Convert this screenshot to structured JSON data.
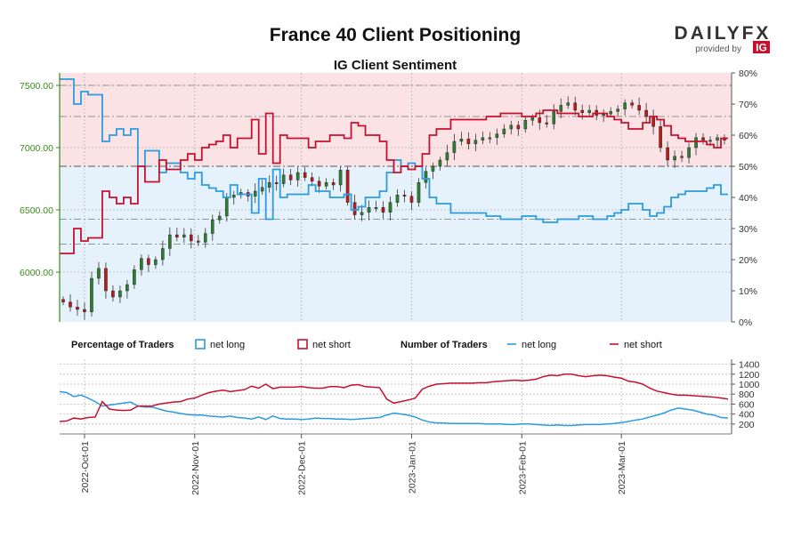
{
  "header": {
    "title": "France 40 Client Positioning",
    "subtitle": "IG Client Sentiment",
    "brand_name": "DAILYFX",
    "brand_tagline": "provided by",
    "brand_badge": "IG"
  },
  "colors": {
    "long": "#2b9be0",
    "short": "#c8102e",
    "long_zone": "#e6f2fb",
    "short_zone": "#fbe3e5",
    "price_axis": "#3a8a1a",
    "candle_up": "#2e7d32",
    "candle_down": "#b71c1c",
    "gray_line": "#777777"
  },
  "legend": {
    "pct_label": "Percentage of Traders",
    "pct_long": "net long",
    "pct_short": "net short",
    "num_label": "Number of Traders",
    "num_long": "net long",
    "num_short": "net short"
  },
  "chart_data": {
    "type": "line",
    "title": "France 40 Client Positioning",
    "subtitle": "IG Client Sentiment",
    "x_tick_labels": [
      "2022-Oct-01",
      "2022-Nov-01",
      "2022-Dec-01",
      "2023-Jan-01",
      "2023-Feb-01",
      "2023-Mar-01"
    ],
    "x_tick_days": [
      0,
      31,
      61,
      92,
      123,
      151
    ],
    "x_range_days": [
      -7,
      182
    ],
    "price_axis": {
      "ticks": [
        "6000.00",
        "6500.00",
        "7000.00",
        "7500.00"
      ],
      "tick_values": [
        6000,
        6500,
        7000,
        7500
      ],
      "range": [
        5600,
        7600
      ]
    },
    "percent_axis": {
      "ticks": [
        "0%",
        "10%",
        "20%",
        "30%",
        "40%",
        "50%",
        "60%",
        "70%",
        "80%"
      ],
      "tick_values": [
        0,
        10,
        20,
        30,
        40,
        50,
        60,
        70,
        80
      ],
      "range": [
        0,
        80
      ]
    },
    "count_axis": {
      "ticks": [
        "200",
        "400",
        "600",
        "800",
        "1000",
        "1200",
        "1400"
      ],
      "tick_values": [
        200,
        400,
        600,
        800,
        1000,
        1200,
        1400
      ],
      "range": [
        0,
        1500
      ]
    },
    "reference_lines": {
      "percent_dash_dot": [
        25,
        33,
        50,
        66,
        76
      ],
      "price_dash_dot": [
        6850
      ],
      "price_dash_dot_labels": []
    },
    "price": {
      "x": [
        -6,
        -4,
        -2,
        0,
        2,
        4,
        6,
        8,
        10,
        12,
        14,
        16,
        18,
        20,
        22,
        24,
        26,
        28,
        30,
        32,
        34,
        36,
        38,
        40,
        42,
        44,
        46,
        48,
        50,
        52,
        54,
        56,
        58,
        60,
        62,
        64,
        66,
        68,
        70,
        72,
        74,
        76,
        78,
        80,
        82,
        84,
        86,
        88,
        90,
        92,
        94,
        96,
        98,
        100,
        102,
        104,
        106,
        108,
        110,
        112,
        114,
        116,
        118,
        120,
        122,
        124,
        126,
        128,
        130,
        132,
        134,
        136,
        138,
        140,
        142,
        144,
        146,
        148,
        150,
        152,
        154,
        156,
        158,
        160,
        162,
        164,
        166,
        168,
        170,
        172,
        174,
        176,
        178,
        180
      ],
      "values": [
        5760,
        5720,
        5700,
        5680,
        5950,
        6030,
        5850,
        5800,
        5850,
        5900,
        6020,
        6110,
        6060,
        6100,
        6190,
        6300,
        6280,
        6300,
        6250,
        6240,
        6310,
        6420,
        6450,
        6600,
        6620,
        6640,
        6610,
        6650,
        6680,
        6720,
        6710,
        6780,
        6740,
        6800,
        6760,
        6730,
        6690,
        6720,
        6700,
        6820,
        6560,
        6460,
        6480,
        6520,
        6520,
        6480,
        6560,
        6620,
        6610,
        6560,
        6720,
        6810,
        6850,
        6900,
        6960,
        7050,
        7070,
        7030,
        7060,
        7080,
        7080,
        7110,
        7150,
        7180,
        7150,
        7220,
        7240,
        7200,
        7190,
        7290,
        7340,
        7360,
        7300,
        7280,
        7300,
        7260,
        7270,
        7290,
        7310,
        7360,
        7340,
        7300,
        7250,
        7170,
        7000,
        6900,
        6930,
        6920,
        7000,
        7080,
        7060,
        7060,
        7080,
        7060
      ]
    },
    "percent_series": {
      "x": [
        -7,
        -5,
        -3,
        -1,
        1,
        3,
        5,
        7,
        9,
        11,
        13,
        15,
        17,
        19,
        21,
        23,
        25,
        27,
        29,
        31,
        33,
        35,
        37,
        39,
        41,
        43,
        45,
        47,
        49,
        51,
        53,
        55,
        57,
        59,
        61,
        63,
        65,
        67,
        69,
        71,
        73,
        75,
        77,
        79,
        81,
        83,
        85,
        87,
        89,
        91,
        93,
        95,
        97,
        99,
        101,
        103,
        105,
        107,
        109,
        111,
        113,
        115,
        117,
        119,
        121,
        123,
        125,
        127,
        129,
        131,
        133,
        135,
        137,
        139,
        141,
        143,
        145,
        147,
        149,
        151,
        153,
        155,
        157,
        159,
        161,
        163,
        165,
        167,
        169,
        171,
        173,
        175,
        177,
        179,
        181
      ],
      "net_long": [
        78,
        78,
        70,
        74,
        73,
        73,
        58,
        60,
        62,
        60,
        62,
        50,
        55,
        55,
        48,
        51,
        51,
        48,
        46,
        48,
        44,
        43,
        42,
        40,
        44,
        41,
        41,
        35,
        46,
        33,
        49,
        40,
        41,
        41,
        41,
        44,
        42,
        42,
        40,
        40,
        41,
        36,
        37,
        40,
        40,
        42,
        48,
        52,
        50,
        51,
        50,
        46,
        40,
        38,
        38,
        35,
        35,
        35,
        35,
        35,
        34,
        34,
        33,
        33,
        33,
        34,
        34,
        33,
        32,
        32,
        33,
        33,
        33,
        34,
        34,
        33,
        33,
        34,
        35,
        36,
        38,
        38,
        36,
        34,
        35,
        37,
        40,
        41,
        42,
        42,
        42,
        43,
        44,
        41,
        41
      ],
      "net_short": [
        22,
        22,
        30,
        26,
        27,
        27,
        42,
        40,
        38,
        40,
        38,
        50,
        45,
        45,
        52,
        49,
        49,
        52,
        54,
        52,
        56,
        57,
        58,
        60,
        56,
        59,
        59,
        65,
        54,
        67,
        51,
        60,
        59,
        59,
        59,
        56,
        58,
        58,
        60,
        60,
        59,
        64,
        63,
        60,
        60,
        58,
        52,
        48,
        50,
        49,
        50,
        54,
        60,
        62,
        62,
        65,
        65,
        65,
        65,
        65,
        66,
        66,
        67,
        67,
        67,
        66,
        66,
        67,
        68,
        68,
        67,
        67,
        67,
        66,
        66,
        67,
        67,
        66,
        65,
        64,
        62,
        62,
        64,
        66,
        65,
        63,
        60,
        59,
        58,
        58,
        58,
        57,
        56,
        59,
        59
      ]
    },
    "count_series": {
      "x": [
        -7,
        -5,
        -3,
        -1,
        1,
        3,
        5,
        7,
        9,
        11,
        13,
        15,
        17,
        19,
        21,
        23,
        25,
        27,
        29,
        31,
        33,
        35,
        37,
        39,
        41,
        43,
        45,
        47,
        49,
        51,
        53,
        55,
        57,
        59,
        61,
        63,
        65,
        67,
        69,
        71,
        73,
        75,
        77,
        79,
        81,
        83,
        85,
        87,
        89,
        91,
        93,
        95,
        97,
        99,
        101,
        103,
        105,
        107,
        109,
        111,
        113,
        115,
        117,
        119,
        121,
        123,
        125,
        127,
        129,
        131,
        133,
        135,
        137,
        139,
        141,
        143,
        145,
        147,
        149,
        151,
        153,
        155,
        157,
        159,
        161,
        163,
        165,
        167,
        169,
        171,
        173,
        175,
        177,
        179,
        181
      ],
      "net_long": [
        850,
        830,
        750,
        780,
        720,
        650,
        560,
        580,
        600,
        620,
        640,
        560,
        540,
        540,
        500,
        460,
        440,
        410,
        390,
        380,
        380,
        360,
        350,
        340,
        360,
        330,
        320,
        300,
        340,
        290,
        360,
        310,
        300,
        300,
        290,
        300,
        320,
        310,
        310,
        300,
        300,
        290,
        300,
        310,
        320,
        330,
        380,
        420,
        400,
        380,
        340,
        280,
        240,
        220,
        220,
        210,
        210,
        210,
        210,
        210,
        200,
        200,
        200,
        190,
        190,
        200,
        200,
        190,
        180,
        170,
        180,
        170,
        170,
        180,
        190,
        190,
        190,
        200,
        210,
        230,
        250,
        280,
        300,
        340,
        380,
        420,
        480,
        520,
        500,
        480,
        440,
        400,
        380,
        330,
        320
      ],
      "net_short": [
        250,
        260,
        320,
        300,
        330,
        340,
        650,
        500,
        480,
        470,
        480,
        560,
        560,
        560,
        600,
        620,
        640,
        650,
        700,
        720,
        780,
        830,
        860,
        880,
        850,
        870,
        890,
        960,
        920,
        1000,
        910,
        940,
        940,
        940,
        950,
        930,
        920,
        920,
        950,
        950,
        930,
        980,
        990,
        950,
        940,
        930,
        700,
        620,
        650,
        680,
        720,
        900,
        960,
        1000,
        1010,
        1020,
        1020,
        1020,
        1020,
        1030,
        1030,
        1050,
        1060,
        1070,
        1080,
        1070,
        1080,
        1100,
        1150,
        1180,
        1170,
        1200,
        1200,
        1170,
        1150,
        1170,
        1180,
        1170,
        1140,
        1120,
        1060,
        1040,
        1000,
        920,
        860,
        830,
        800,
        780,
        780,
        770,
        760,
        750,
        740,
        720,
        700
      ]
    }
  }
}
